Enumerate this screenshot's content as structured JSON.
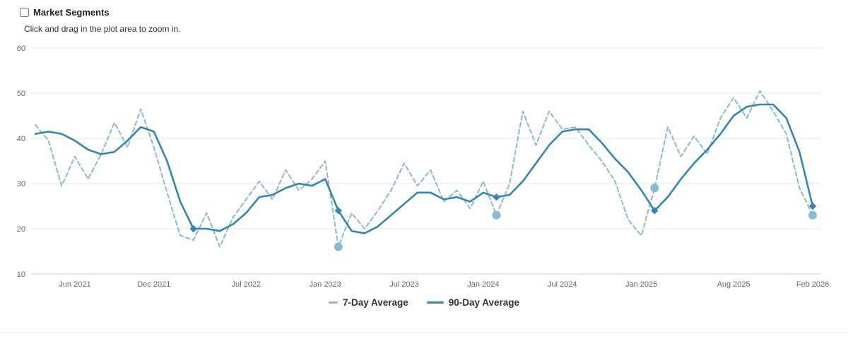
{
  "header": {
    "checkbox_label": "Market Segments",
    "checkbox_checked": false,
    "subtitle": "Click and drag in the plot area to zoom in."
  },
  "chart_data": {
    "type": "line",
    "x_start": "2021-03",
    "x_end": "2026-02",
    "x_interval": "1 month",
    "ylim": [
      10,
      60
    ],
    "yticks": [
      10,
      20,
      30,
      40,
      50,
      60
    ],
    "grid": "horizontal",
    "legend_position": "bottom",
    "xticks": [
      {
        "label": "Jun 2021",
        "index": 3
      },
      {
        "label": "Dec 2021",
        "index": 9
      },
      {
        "label": "Jul 2022",
        "index": 16
      },
      {
        "label": "Jan 2023",
        "index": 22
      },
      {
        "label": "Jul 2023",
        "index": 28
      },
      {
        "label": "Jan 2024",
        "index": 34
      },
      {
        "label": "Jul 2024",
        "index": 40
      },
      {
        "label": "Jan 2025",
        "index": 46
      },
      {
        "label": "Aug 2025",
        "index": 53
      },
      {
        "label": "Feb 2026",
        "index": 59
      }
    ],
    "series": [
      {
        "name": "7-Day Average",
        "style": "dashed",
        "color": "#8ab9d4",
        "marker": "circle",
        "marker_indices": [
          23,
          35,
          47,
          59
        ],
        "values": [
          43,
          39.5,
          29.5,
          36,
          31,
          36.5,
          43.5,
          38,
          46.5,
          38,
          28,
          18.5,
          17.5,
          23.5,
          16,
          22.5,
          26.5,
          30.5,
          26.5,
          33,
          28.5,
          31,
          35,
          16,
          23.5,
          20,
          24,
          28.5,
          34.5,
          29.5,
          33,
          26,
          28.5,
          24.5,
          30.5,
          23,
          30,
          46,
          38.5,
          46,
          42,
          42.5,
          38.5,
          35,
          30.5,
          22,
          18.5,
          29,
          42.5,
          36,
          40.5,
          36.5,
          44.5,
          49,
          44.5,
          50.5,
          46,
          41,
          29,
          23
        ]
      },
      {
        "name": "90-Day Average",
        "style": "solid",
        "color": "#3187ad",
        "marker": "diamond",
        "marker_indices": [
          12,
          23,
          35,
          47,
          59
        ],
        "values": [
          41,
          41.5,
          41,
          39.5,
          37.5,
          36.5,
          37,
          39.5,
          42.5,
          41.5,
          35,
          26,
          20,
          20,
          19.5,
          21,
          23.5,
          27,
          27.5,
          29,
          30,
          29.5,
          31,
          24,
          19.5,
          19,
          20.5,
          23,
          25.5,
          28,
          28,
          26.5,
          27,
          26,
          28,
          27,
          27.5,
          30.5,
          34.5,
          38.5,
          41.5,
          42,
          42,
          39,
          35.5,
          32.5,
          28.5,
          24,
          27,
          31,
          34.5,
          37.5,
          41,
          45,
          47,
          47.5,
          47.5,
          44.5,
          37,
          25
        ]
      }
    ]
  }
}
